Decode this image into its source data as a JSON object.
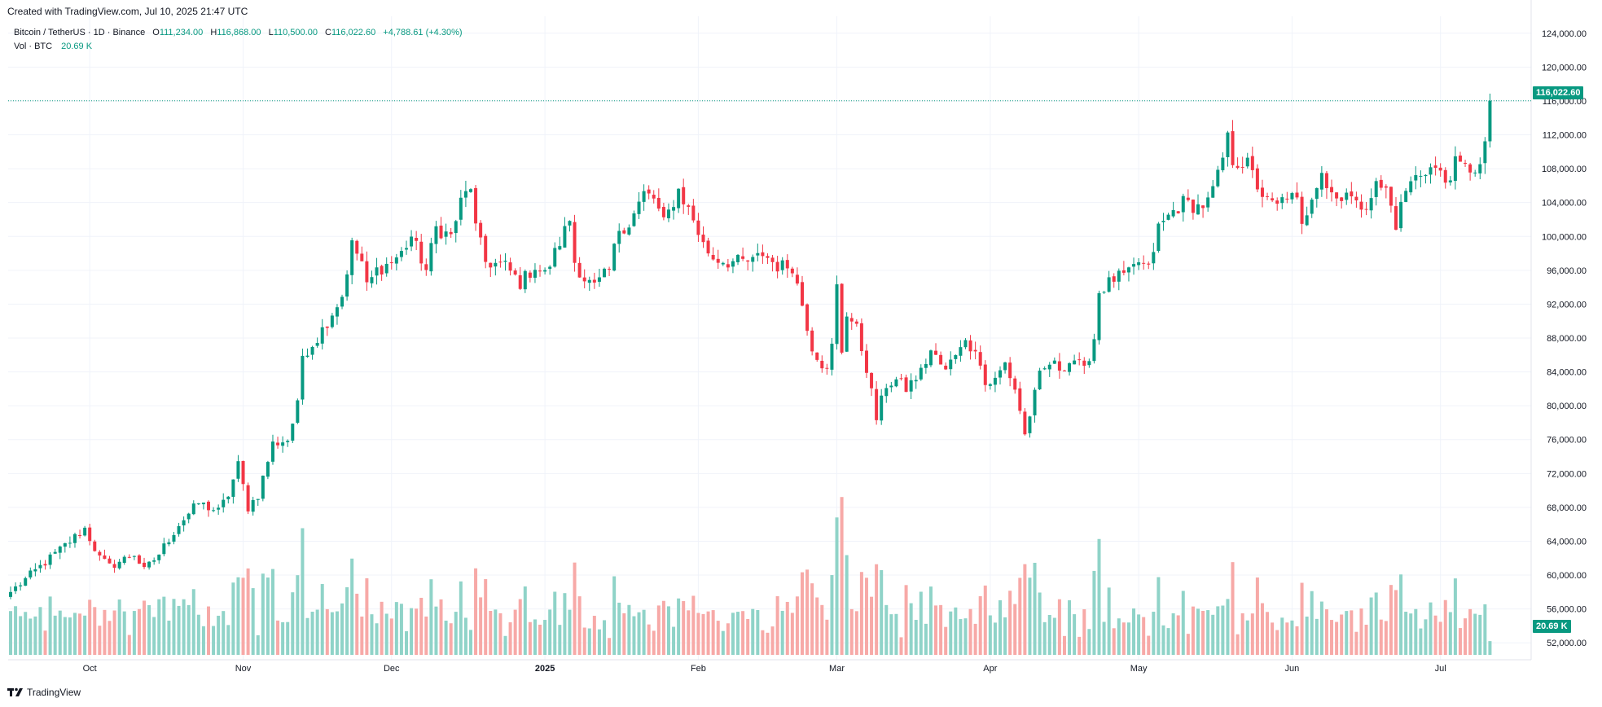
{
  "header": {
    "created_text": "Created with TradingView.com, Jul 10, 2025 21:47 UTC"
  },
  "legend": {
    "symbol": "Bitcoin / TetherUS · 1D · Binance",
    "o_label": "O",
    "o_value": "111,234.00",
    "h_label": "H",
    "h_value": "116,868.00",
    "l_label": "L",
    "l_value": "110,500.00",
    "c_label": "C",
    "c_value": "116,022.60",
    "change": "+4,788.61 (+4.30%)",
    "vol_label": "Vol · BTC",
    "vol_value": "20.69 K"
  },
  "price_tag": "116,022.60",
  "volume_tag": "20.69 K",
  "footer": {
    "brand": "TradingView"
  },
  "colors": {
    "up": "#089981",
    "down": "#f23645",
    "vol_up": "#8fd3c8",
    "vol_down": "#f7a9a7",
    "grid": "#f0f3fa",
    "axis_text": "#131722"
  },
  "chart_data": {
    "type": "candlestick",
    "title": "Bitcoin / TetherUS · 1D · Binance",
    "y_ticks": [
      "52,000.00",
      "56,000.00",
      "60,000.00",
      "64,000.00",
      "68,000.00",
      "72,000.00",
      "76,000.00",
      "80,000.00",
      "84,000.00",
      "88,000.00",
      "92,000.00",
      "96,000.00",
      "100,000.00",
      "104,000.00",
      "108,000.00",
      "112,000.00",
      "116,000.00",
      "120,000.00",
      "124,000.00"
    ],
    "y_tick_values": [
      52000,
      56000,
      60000,
      64000,
      68000,
      72000,
      76000,
      80000,
      84000,
      88000,
      92000,
      96000,
      100000,
      104000,
      108000,
      112000,
      116000,
      120000,
      124000
    ],
    "ylim": [
      50000,
      126000
    ],
    "x_ticks": [
      {
        "label": "Oct",
        "day": 16
      },
      {
        "label": "Nov",
        "day": 47
      },
      {
        "label": "Dec",
        "day": 77
      },
      {
        "label": "2025",
        "day": 108
      },
      {
        "label": "Feb",
        "day": 139
      },
      {
        "label": "Mar",
        "day": 167
      },
      {
        "label": "Apr",
        "day": 198
      },
      {
        "label": "May",
        "day": 228
      },
      {
        "label": "Jun",
        "day": 259
      },
      {
        "label": "Jul",
        "day": 289
      }
    ],
    "last_close": 116022.6,
    "anchors_close": [
      [
        0,
        58000
      ],
      [
        5,
        60500
      ],
      [
        10,
        63000
      ],
      [
        15,
        65500
      ],
      [
        18,
        62000
      ],
      [
        20,
        61000
      ],
      [
        25,
        62500
      ],
      [
        27,
        60500
      ],
      [
        30,
        62500
      ],
      [
        34,
        66000
      ],
      [
        38,
        68500
      ],
      [
        42,
        67500
      ],
      [
        44,
        69500
      ],
      [
        46,
        73000
      ],
      [
        48,
        68000
      ],
      [
        50,
        69500
      ],
      [
        53,
        75500
      ],
      [
        56,
        76000
      ],
      [
        58,
        80000
      ],
      [
        59,
        86000
      ],
      [
        62,
        88000
      ],
      [
        65,
        91000
      ],
      [
        67,
        93000
      ],
      [
        69,
        99000
      ],
      [
        71,
        97000
      ],
      [
        72,
        94000
      ],
      [
        74,
        96000
      ],
      [
        77,
        97000
      ],
      [
        79,
        98000
      ],
      [
        81,
        100000
      ],
      [
        84,
        96000
      ],
      [
        86,
        101000
      ],
      [
        89,
        100000
      ],
      [
        91,
        104000
      ],
      [
        93,
        106000
      ],
      [
        94,
        101000
      ],
      [
        96,
        97000
      ],
      [
        100,
        96500
      ],
      [
        103,
        94500
      ],
      [
        106,
        96500
      ],
      [
        108,
        95500
      ],
      [
        110,
        98000
      ],
      [
        113,
        102000
      ],
      [
        114,
        97000
      ],
      [
        116,
        95000
      ],
      [
        118,
        94000
      ],
      [
        121,
        96000
      ],
      [
        123,
        101000
      ],
      [
        125,
        101500
      ],
      [
        128,
        105000
      ],
      [
        130,
        104500
      ],
      [
        132,
        101500
      ],
      [
        135,
        105500
      ],
      [
        138,
        102000
      ],
      [
        140,
        99000
      ],
      [
        142,
        97500
      ],
      [
        145,
        97000
      ],
      [
        150,
        97000
      ],
      [
        152,
        98000
      ],
      [
        155,
        96500
      ],
      [
        158,
        96500
      ],
      [
        160,
        92000
      ],
      [
        162,
        87000
      ],
      [
        164,
        85000
      ],
      [
        165,
        84000
      ],
      [
        166,
        87000
      ],
      [
        167,
        94000
      ],
      [
        168,
        86500
      ],
      [
        169,
        91000
      ],
      [
        171,
        89000
      ],
      [
        173,
        84500
      ],
      [
        175,
        78500
      ],
      [
        177,
        82500
      ],
      [
        179,
        83000
      ],
      [
        181,
        82000
      ],
      [
        184,
        84000
      ],
      [
        186,
        86500
      ],
      [
        189,
        84000
      ],
      [
        192,
        87500
      ],
      [
        195,
        87000
      ],
      [
        197,
        82500
      ],
      [
        199,
        83000
      ],
      [
        201,
        85000
      ],
      [
        203,
        82000
      ],
      [
        204,
        79500
      ],
      [
        205,
        76500
      ],
      [
        206,
        79000
      ],
      [
        208,
        83500
      ],
      [
        210,
        85000
      ],
      [
        212,
        84500
      ],
      [
        215,
        85500
      ],
      [
        217,
        84000
      ],
      [
        219,
        88000
      ],
      [
        220,
        93500
      ],
      [
        223,
        95000
      ],
      [
        226,
        95500
      ],
      [
        228,
        97000
      ],
      [
        230,
        96000
      ],
      [
        232,
        101000
      ],
      [
        235,
        103000
      ],
      [
        237,
        104000
      ],
      [
        240,
        103500
      ],
      [
        242,
        104000
      ],
      [
        244,
        107000
      ],
      [
        246,
        111500
      ],
      [
        247,
        109000
      ],
      [
        250,
        108500
      ],
      [
        252,
        106000
      ],
      [
        254,
        104000
      ],
      [
        256,
        103500
      ],
      [
        258,
        105000
      ],
      [
        260,
        104000
      ],
      [
        261,
        101000
      ],
      [
        263,
        105000
      ],
      [
        265,
        108000
      ],
      [
        266,
        106000
      ],
      [
        268,
        104500
      ],
      [
        270,
        105500
      ],
      [
        272,
        103500
      ],
      [
        274,
        104000
      ],
      [
        276,
        106000
      ],
      [
        278,
        105500
      ],
      [
        280,
        101500
      ],
      [
        282,
        105500
      ],
      [
        284,
        107000
      ],
      [
        286,
        108000
      ],
      [
        288,
        108000
      ],
      [
        290,
        106500
      ],
      [
        292,
        108500
      ],
      [
        294,
        108000
      ],
      [
        297,
        108200
      ],
      [
        298,
        111234
      ],
      [
        299,
        116022.6
      ]
    ],
    "volume_ylim_k": [
      0,
      250
    ],
    "volume_last_k": 20.69
  }
}
